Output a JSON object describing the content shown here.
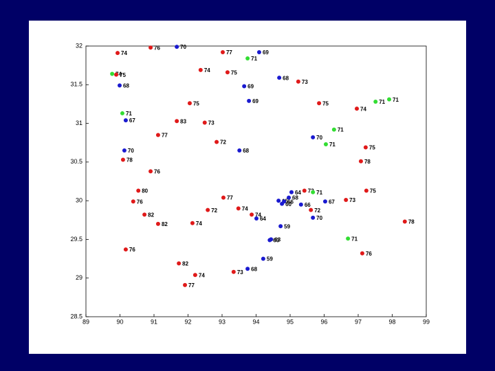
{
  "chart_data": {
    "type": "scatter",
    "x": [
      89.93,
      90.9,
      91.67,
      93.02,
      94.09,
      93.75,
      89.77,
      89.89,
      92.37,
      93.16,
      89.99,
      94.68,
      95.24,
      93.65,
      93.79,
      92.05,
      95.85,
      97.51,
      97.91,
      96.96,
      90.07,
      90.17,
      91.67,
      92.49,
      91.12,
      96.29,
      95.67,
      96.05,
      92.84,
      97.22,
      90.13,
      93.51,
      90.09,
      97.08,
      90.9,
      90.54,
      95.42,
      95.67,
      97.24,
      95.04,
      90.39,
      93.04,
      96.64,
      96.03,
      94.96,
      94.66,
      94.82,
      94.76,
      95.32,
      95.61,
      93.48,
      92.58,
      90.72,
      93.87,
      94.01,
      95.67,
      91.12,
      92.13,
      94.72,
      94.44,
      94.4,
      96.7,
      90.17,
      97.12,
      98.37,
      94.21,
      91.73,
      93.75,
      93.34,
      92.21,
      91.91
    ],
    "y": [
      31.91,
      31.98,
      31.99,
      31.92,
      31.92,
      31.84,
      31.64,
      31.63,
      31.69,
      31.66,
      31.49,
      31.59,
      31.54,
      31.48,
      31.29,
      31.26,
      31.26,
      31.28,
      31.31,
      31.19,
      31.13,
      31.04,
      31.03,
      31.01,
      30.85,
      30.92,
      30.82,
      30.73,
      30.76,
      30.69,
      30.65,
      30.65,
      30.53,
      30.51,
      30.38,
      30.13,
      30.13,
      30.11,
      30.13,
      30.11,
      29.99,
      30.04,
      30.01,
      29.99,
      30.04,
      30.0,
      29.99,
      29.96,
      29.95,
      29.88,
      29.9,
      29.88,
      29.82,
      29.82,
      29.77,
      29.78,
      29.7,
      29.71,
      29.67,
      29.5,
      29.49,
      29.51,
      29.37,
      29.32,
      29.73,
      29.25,
      29.19,
      29.12,
      29.08,
      29.04,
      28.91
    ],
    "point_labels": [
      "74",
      "76",
      "70",
      "77",
      "69",
      "71",
      "74",
      "75",
      "74",
      "75",
      "68",
      "68",
      "73",
      "69",
      "69",
      "75",
      "75",
      "71",
      "71",
      "74",
      "71",
      "67",
      "83",
      "73",
      "77",
      "71",
      "70",
      "71",
      "72",
      "75",
      "70",
      "68",
      "78",
      "78",
      "76",
      "80",
      "73",
      "71",
      "75",
      "64",
      "76",
      "77",
      "73",
      "67",
      "68",
      "65",
      "66",
      "60",
      "66",
      "72",
      "74",
      "72",
      "82",
      "74",
      "64",
      "70",
      "82",
      "74",
      "59",
      "63",
      "60",
      "71",
      "76",
      "76",
      "78",
      "59",
      "82",
      "68",
      "73",
      "74",
      "77"
    ],
    "colors": [
      "#e01a1a",
      "#e01a1a",
      "#1a1ad0",
      "#e01a1a",
      "#1a1ad0",
      "#33dd33",
      "#33dd33",
      "#e01a1a",
      "#e01a1a",
      "#e01a1a",
      "#1a1ad0",
      "#1a1ad0",
      "#e01a1a",
      "#1a1ad0",
      "#1a1ad0",
      "#e01a1a",
      "#e01a1a",
      "#33dd33",
      "#33dd33",
      "#e01a1a",
      "#33dd33",
      "#1a1ad0",
      "#e01a1a",
      "#e01a1a",
      "#e01a1a",
      "#33dd33",
      "#1a1ad0",
      "#33dd33",
      "#e01a1a",
      "#e01a1a",
      "#1a1ad0",
      "#1a1ad0",
      "#e01a1a",
      "#e01a1a",
      "#e01a1a",
      "#e01a1a",
      "#e01a1a",
      "#33dd33",
      "#e01a1a",
      "#1a1ad0",
      "#e01a1a",
      "#e01a1a",
      "#e01a1a",
      "#1a1ad0",
      "#1a1ad0",
      "#1a1ad0",
      "#1a1ad0",
      "#1a1ad0",
      "#1a1ad0",
      "#e01a1a",
      "#e01a1a",
      "#e01a1a",
      "#e01a1a",
      "#e01a1a",
      "#1a1ad0",
      "#1a1ad0",
      "#e01a1a",
      "#e01a1a",
      "#1a1ad0",
      "#1a1ad0",
      "#1a1ad0",
      "#33dd33",
      "#e01a1a",
      "#e01a1a",
      "#e01a1a",
      "#1a1ad0",
      "#e01a1a",
      "#1a1ad0",
      "#e01a1a",
      "#e01a1a",
      "#e01a1a"
    ],
    "xlim": [
      89,
      99
    ],
    "xticks": [
      89,
      90,
      91,
      92,
      93,
      94,
      95,
      96,
      97,
      98,
      99
    ],
    "ylim": [
      28.5,
      32
    ],
    "yticks": [
      28.5,
      29,
      29.5,
      30,
      30.5,
      31,
      31.5,
      32
    ]
  }
}
